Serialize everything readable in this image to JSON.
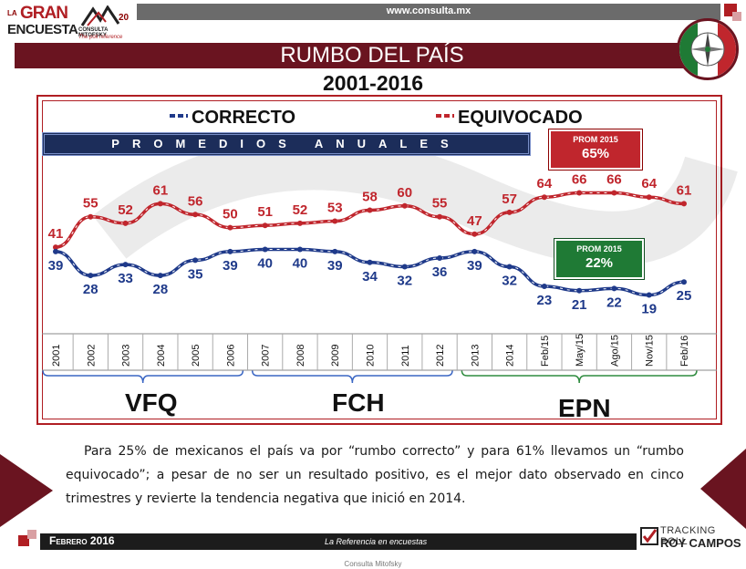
{
  "header": {
    "url": "www.consulta.mx",
    "logo_la": "LA",
    "logo_gran": "GRAN",
    "logo_encuesta": "ENCUESTA",
    "logo_company": "CONSULTA MITOFSKY",
    "logo_tagline": "The poll reference",
    "logo_20": "20"
  },
  "title": "RUMBO DEL PAÍS",
  "subtitle": "2001-2016",
  "legend": {
    "correcto": "CORRECTO",
    "equivocado": "EQUIVOCADO"
  },
  "promedios_label": "PROMEDIOS ANUALES",
  "prom_boxes": {
    "red_title": "PROM 2015",
    "red_value": "65%",
    "green_title": "PROM 2015",
    "green_value": "22%"
  },
  "administrations": [
    {
      "label": "VFQ"
    },
    {
      "label": "FCH"
    },
    {
      "label": "EPN"
    }
  ],
  "colors": {
    "correcto": "#1f3a8a",
    "equivocado": "#c0262d",
    "accent": "#6a1420",
    "epn_bracket": "#2e8b3e",
    "bracket": "#3a66c4"
  },
  "chart_data": {
    "type": "line",
    "title": "RUMBO DEL PAÍS",
    "subtitle": "2001-2016",
    "x": [
      "2001",
      "2002",
      "2003",
      "2004",
      "2005",
      "2006",
      "2007",
      "2008",
      "2009",
      "2010",
      "2011",
      "2012",
      "2013",
      "2014",
      "Feb/15",
      "May/15",
      "Ago/15",
      "Nov/15",
      "Feb/16"
    ],
    "series": [
      {
        "name": "EQUIVOCADO",
        "values": [
          41,
          55,
          52,
          61,
          56,
          50,
          51,
          52,
          53,
          58,
          60,
          55,
          47,
          57,
          64,
          66,
          66,
          64,
          61
        ]
      },
      {
        "name": "CORRECTO",
        "values": [
          39,
          28,
          33,
          28,
          35,
          39,
          40,
          40,
          39,
          34,
          32,
          36,
          39,
          32,
          23,
          21,
          22,
          19,
          25
        ]
      }
    ],
    "ylim": [
      10,
      75
    ],
    "grid": false,
    "legend_position": "top"
  },
  "paragraph": "Para 25% de mexicanos el país va por “rumbo correcto” y para 61% llevamos un “rumbo equivocado”; a pesar de no ser un resultado positivo, es el mejor dato observado en cinco trimestres y revierte la tendencia negativa que inició en 2014.",
  "footer": {
    "date": "Febrero 2016",
    "tagline": "La Referencia en encuestas",
    "tracking_line1": "TRACKING POLL",
    "tracking_line2": "ROY CAMPOS",
    "footnote": "Consulta Mitofsky"
  }
}
